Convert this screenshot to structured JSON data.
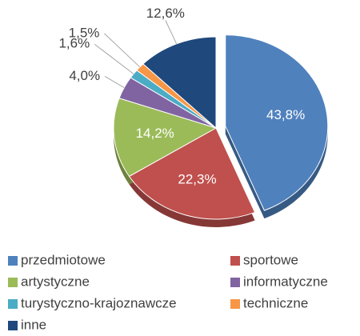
{
  "chart_data": {
    "type": "pie",
    "categories": [
      "przedmiotowe",
      "sportowe",
      "artystyczne",
      "informatyczne",
      "turystyczno-krajoznawcze",
      "techniczne",
      "inne"
    ],
    "values": [
      43.8,
      22.3,
      14.2,
      4.0,
      1.6,
      1.5,
      12.6
    ],
    "value_labels": [
      "43,8%",
      "22,3%",
      "14,2%",
      "4,0%",
      "1,6%",
      "1,5%",
      "12,6%"
    ],
    "colors": [
      "#4f81bd",
      "#c0504d",
      "#9bbb59",
      "#8064a2",
      "#4bacc6",
      "#f79646",
      "#1f497d"
    ],
    "legend": "bottom"
  }
}
